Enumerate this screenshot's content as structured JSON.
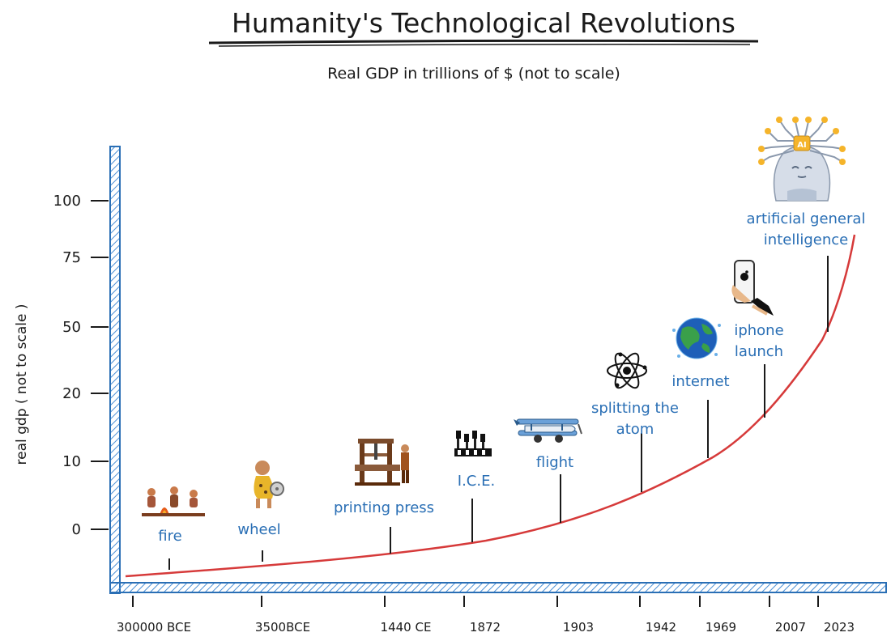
{
  "chart_data": {
    "type": "line",
    "title": "Humanity's Technological Revolutions",
    "subtitle": "Real GDP in trillions of $ (not to scale)",
    "xlabel": "",
    "ylabel": "real gdp ( not to scale )",
    "y_ticks": [
      "0",
      "10",
      "20",
      "50",
      "75",
      "100"
    ],
    "x_ticks": [
      "300000 BCE",
      "3500BCE",
      "1440 CE",
      "1872",
      "1903",
      "1942",
      "1969",
      "2007",
      "2023"
    ],
    "grid": false,
    "series": [
      {
        "color": "#d63a3a",
        "curve": "exponential"
      }
    ],
    "events": [
      {
        "label": [
          "fire"
        ],
        "icon": "fire-icon"
      },
      {
        "label": [
          "wheel"
        ],
        "icon": "wheel-icon"
      },
      {
        "label": [
          "printing press"
        ],
        "icon": "printing-press-icon"
      },
      {
        "label": [
          "I.C.E."
        ],
        "icon": "engine-icon"
      },
      {
        "label": [
          "flight"
        ],
        "icon": "airplane-icon"
      },
      {
        "label": [
          "splitting the",
          "atom"
        ],
        "icon": "atom-icon"
      },
      {
        "label": [
          "internet"
        ],
        "icon": "globe-icon"
      },
      {
        "label": [
          "iphone",
          "launch"
        ],
        "icon": "phone-icon"
      },
      {
        "label": [
          "artificial general",
          "intelligence"
        ],
        "icon": "ai-head-icon"
      }
    ]
  },
  "colors": {
    "axis": "#2a6fb5",
    "curve": "#d63a3a",
    "label": "#2a6fb5",
    "text": "#1a1a1a"
  }
}
